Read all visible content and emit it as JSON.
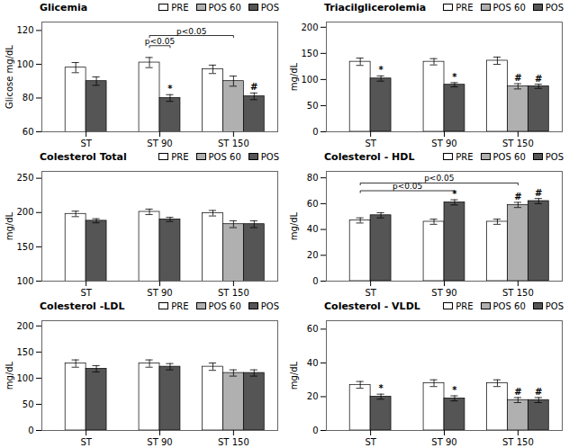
{
  "chart_data": [
    {
      "type": "bar",
      "title": "Glicemia",
      "ylabel": "Glicose mg/dL",
      "categories": [
        "ST",
        "ST 90",
        "ST 150"
      ],
      "series": [
        {
          "name": "PRE",
          "color": "#ffffff",
          "values": [
            98,
            101,
            97
          ],
          "errors": [
            3,
            3,
            2.5
          ]
        },
        {
          "name": "POS 60",
          "color": "#b0b0b0",
          "values": [
            null,
            null,
            90
          ],
          "errors": [
            null,
            null,
            3
          ]
        },
        {
          "name": "POS",
          "color": "#555555",
          "values": [
            90,
            80,
            81
          ],
          "errors": [
            2.5,
            2,
            2
          ]
        }
      ],
      "annotations": [
        {
          "text": "*",
          "category": "ST 90",
          "series": "POS"
        },
        {
          "text": "#",
          "category": "ST 150",
          "series": "POS"
        }
      ],
      "brackets": [
        {
          "label": "p<0.05",
          "from": {
            "category": "ST 90",
            "series": "PRE"
          },
          "to": {
            "category": "ST 90",
            "series": "POS"
          },
          "y": 111
        },
        {
          "label": "p<0.05",
          "from": {
            "category": "ST 90",
            "series": "PRE"
          },
          "to": {
            "category": "ST 150",
            "series": "POS 60"
          },
          "y": 117
        }
      ],
      "ylim": [
        60,
        125
      ],
      "yticks": [
        60,
        80,
        100,
        120
      ],
      "legend": "upper right"
    },
    {
      "type": "bar",
      "title": "Triacilglicerolemia",
      "ylabel": "mg/dL",
      "categories": [
        "ST",
        "ST 90",
        "ST 150"
      ],
      "series": [
        {
          "name": "PRE",
          "color": "#ffffff",
          "values": [
            134,
            134,
            136
          ],
          "errors": [
            7,
            6,
            7
          ]
        },
        {
          "name": "POS 60",
          "color": "#b0b0b0",
          "values": [
            null,
            null,
            87
          ],
          "errors": [
            null,
            null,
            5
          ]
        },
        {
          "name": "POS",
          "color": "#555555",
          "values": [
            102,
            90,
            87
          ],
          "errors": [
            5,
            4,
            4
          ]
        }
      ],
      "annotations": [
        {
          "text": "*",
          "category": "ST",
          "series": "POS"
        },
        {
          "text": "*",
          "category": "ST 90",
          "series": "POS"
        },
        {
          "text": "#",
          "category": "ST 150",
          "series": "POS"
        },
        {
          "text": "#",
          "category": "ST 150",
          "series": "POS 60"
        }
      ],
      "ylim": [
        0,
        210
      ],
      "yticks": [
        0,
        50,
        100,
        150,
        200
      ],
      "legend": "upper right"
    },
    {
      "type": "bar",
      "title": "Colesterol Total",
      "ylabel": "mg/dL",
      "categories": [
        "ST",
        "ST 90",
        "ST 150"
      ],
      "series": [
        {
          "name": "PRE",
          "color": "#ffffff",
          "values": [
            198,
            201,
            199
          ],
          "errors": [
            4,
            4,
            4
          ]
        },
        {
          "name": "POS 60",
          "color": "#b0b0b0",
          "values": [
            null,
            null,
            183
          ],
          "errors": [
            null,
            null,
            5
          ]
        },
        {
          "name": "POS",
          "color": "#555555",
          "values": [
            188,
            190,
            183
          ],
          "errors": [
            3,
            3,
            5
          ]
        }
      ],
      "ylim": [
        100,
        260
      ],
      "yticks": [
        100,
        150,
        200,
        250
      ],
      "legend": "upper right"
    },
    {
      "type": "bar",
      "title": "Colesterol - HDL",
      "ylabel": "mg/dL",
      "categories": [
        "ST",
        "ST 90",
        "ST 150"
      ],
      "series": [
        {
          "name": "PRE",
          "color": "#ffffff",
          "values": [
            47,
            46,
            46
          ],
          "errors": [
            2,
            2,
            2
          ]
        },
        {
          "name": "POS 60",
          "color": "#b0b0b0",
          "values": [
            null,
            null,
            59
          ],
          "errors": [
            null,
            null,
            2
          ]
        },
        {
          "name": "POS",
          "color": "#555555",
          "values": [
            51,
            61,
            62
          ],
          "errors": [
            2,
            2,
            2
          ]
        }
      ],
      "annotations": [
        {
          "text": "*",
          "category": "ST 90",
          "series": "POS"
        },
        {
          "text": "#",
          "category": "ST 150",
          "series": "POS"
        },
        {
          "text": "#",
          "category": "ST 150",
          "series": "POS 60"
        }
      ],
      "brackets": [
        {
          "label": "p<0.05",
          "from": {
            "category": "ST",
            "series": "PRE"
          },
          "to": {
            "category": "ST 90",
            "series": "POS"
          },
          "y": 70
        },
        {
          "label": "p<0.05",
          "from": {
            "category": "ST",
            "series": "PRE"
          },
          "to": {
            "category": "ST 150",
            "series": "POS 60"
          },
          "y": 76
        }
      ],
      "ylim": [
        0,
        85
      ],
      "yticks": [
        0,
        20,
        40,
        60,
        80
      ],
      "legend": "upper right"
    },
    {
      "type": "bar",
      "title": "Colesterol -LDL",
      "ylabel": "mg/dL",
      "categories": [
        "ST",
        "ST 90",
        "ST 150"
      ],
      "series": [
        {
          "name": "PRE",
          "color": "#ffffff",
          "values": [
            128,
            128,
            122
          ],
          "errors": [
            7,
            7,
            7
          ]
        },
        {
          "name": "POS 60",
          "color": "#b0b0b0",
          "values": [
            null,
            null,
            110
          ],
          "errors": [
            null,
            null,
            6
          ]
        },
        {
          "name": "POS",
          "color": "#555555",
          "values": [
            118,
            122,
            110
          ],
          "errors": [
            6,
            6,
            6
          ]
        }
      ],
      "ylim": [
        0,
        210
      ],
      "yticks": [
        0,
        50,
        100,
        150,
        200
      ],
      "legend": "upper right"
    },
    {
      "type": "bar",
      "title": "Colesterol - VLDL",
      "ylabel": "mg/dL",
      "categories": [
        "ST",
        "ST 90",
        "ST 150"
      ],
      "series": [
        {
          "name": "PRE",
          "color": "#ffffff",
          "values": [
            27,
            28,
            28
          ],
          "errors": [
            2,
            2,
            2
          ]
        },
        {
          "name": "POS 60",
          "color": "#b0b0b0",
          "values": [
            null,
            null,
            18
          ],
          "errors": [
            null,
            null,
            1.5
          ]
        },
        {
          "name": "POS",
          "color": "#555555",
          "values": [
            20,
            19,
            18
          ],
          "errors": [
            1.5,
            1.5,
            1.5
          ]
        }
      ],
      "annotations": [
        {
          "text": "*",
          "category": "ST",
          "series": "POS"
        },
        {
          "text": "*",
          "category": "ST 90",
          "series": "POS"
        },
        {
          "text": "#",
          "category": "ST 150",
          "series": "POS"
        },
        {
          "text": "#",
          "category": "ST 150",
          "series": "POS 60"
        }
      ],
      "ylim": [
        0,
        65
      ],
      "yticks": [
        0,
        20,
        40,
        60
      ],
      "legend": "upper right"
    }
  ]
}
